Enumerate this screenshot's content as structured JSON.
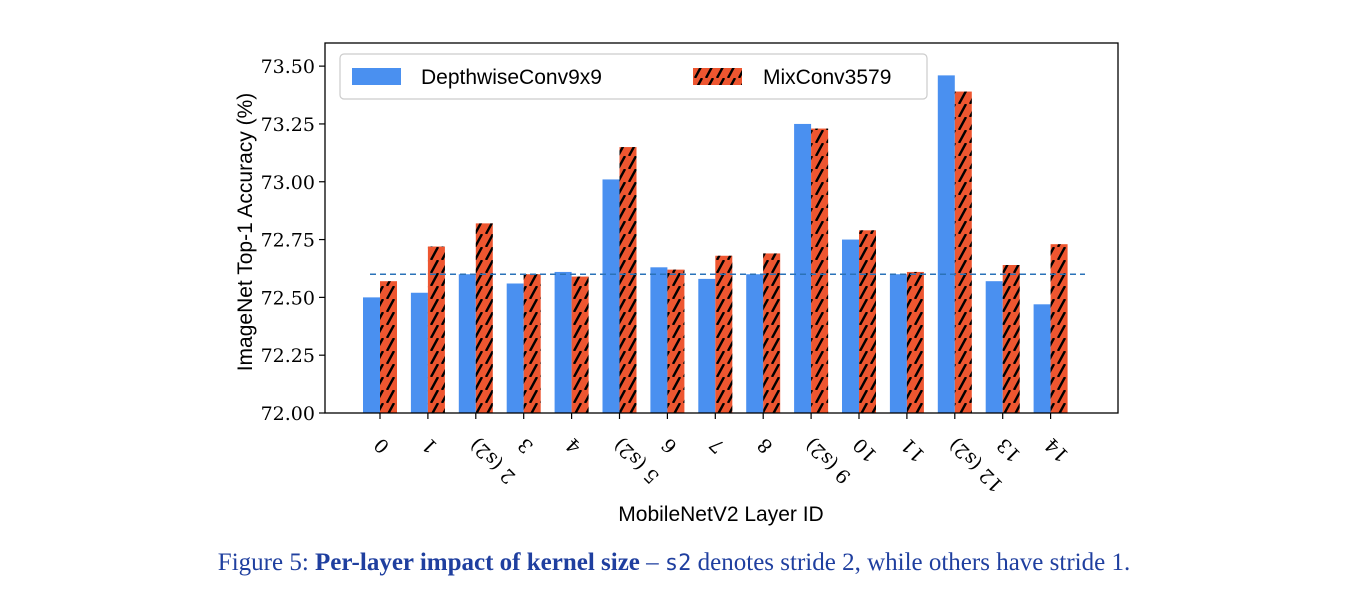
{
  "chart_data": {
    "type": "bar",
    "xlabel": "MobileNetV2 Layer ID",
    "ylabel": "ImageNet Top-1 Accuracy (%)",
    "ylim": [
      72.0,
      73.6
    ],
    "yticks": [
      "72.00",
      "72.25",
      "72.50",
      "72.75",
      "73.00",
      "73.25",
      "73.50"
    ],
    "categories": [
      "0",
      "1",
      "2 (s2)",
      "3",
      "4",
      "5 (s2)",
      "6",
      "7",
      "8",
      "9 (s2)",
      "10",
      "11",
      "12 (s2)",
      "13",
      "14"
    ],
    "series": [
      {
        "name": "DepthwiseConv9x9",
        "color": "#4a90f0",
        "values": [
          72.5,
          72.52,
          72.6,
          72.56,
          72.61,
          73.01,
          72.63,
          72.58,
          72.6,
          73.25,
          72.75,
          72.6,
          73.46,
          72.57,
          72.47
        ]
      },
      {
        "name": "MixConv3579",
        "color": "#ee5630",
        "hatch": "diagonal",
        "values": [
          72.57,
          72.72,
          72.82,
          72.6,
          72.59,
          73.15,
          72.62,
          72.68,
          72.69,
          73.23,
          72.79,
          72.61,
          73.39,
          72.64,
          72.73
        ]
      }
    ],
    "baseline": {
      "value": 72.6,
      "style": "dashed",
      "color": "#2a72b8"
    },
    "legend": "top-left",
    "grid": false
  },
  "caption": {
    "prefix": "Figure 5:  ",
    "bold": "Per-layer impact of kernel size",
    "dash": " – ",
    "code": "s2",
    "rest": " denotes stride 2, while others have stride 1."
  }
}
